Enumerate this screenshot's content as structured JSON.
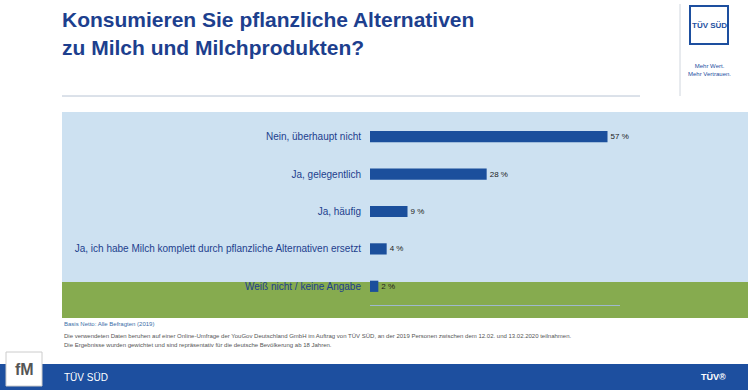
{
  "chart_data": {
    "type": "bar",
    "orientation": "horizontal",
    "title": "Konsumieren Sie pflanzliche Alternativen\nzu Milch und Milchprodukten?",
    "categories": [
      "Nein, überhaupt nicht",
      "Ja, gelegentlich",
      "Ja, häufig",
      "Ja, ich habe Milch komplett durch pflanzliche Alternativen ersetzt",
      "Weiß nicht / keine Angabe"
    ],
    "values": [
      57,
      28,
      9,
      4,
      2
    ],
    "value_labels": [
      "57 %",
      "28 %",
      "9 %",
      "4 %",
      "2 %"
    ],
    "color": "#1b4f9c",
    "xlim": [
      0,
      60
    ],
    "grid": false,
    "data_labels": true,
    "tick_labels": "y"
  },
  "logo": {
    "text": "TÜV SÜD",
    "slogan": [
      "Mehr Wert.",
      "Mehr Vertrauen."
    ]
  },
  "notes": [
    "Basis Netto: Alle Befragten (2019)",
    "Die verwendeten Daten beruhen auf einer Online-Umfrage der YouGov Deutschland GmbH im Auftrag von TÜV SÜD, an der 2019 Personen zwischen dem 12.02. und 13.02.2020 teilnahmen.",
    "Die Ergebnisse wurden gewichtet und sind repräsentativ für die deutsche Bevölkerung ab 18 Jahren."
  ],
  "footer": {
    "left": "TÜV SÜD",
    "right": "TÜV®"
  },
  "watermark": "fM"
}
